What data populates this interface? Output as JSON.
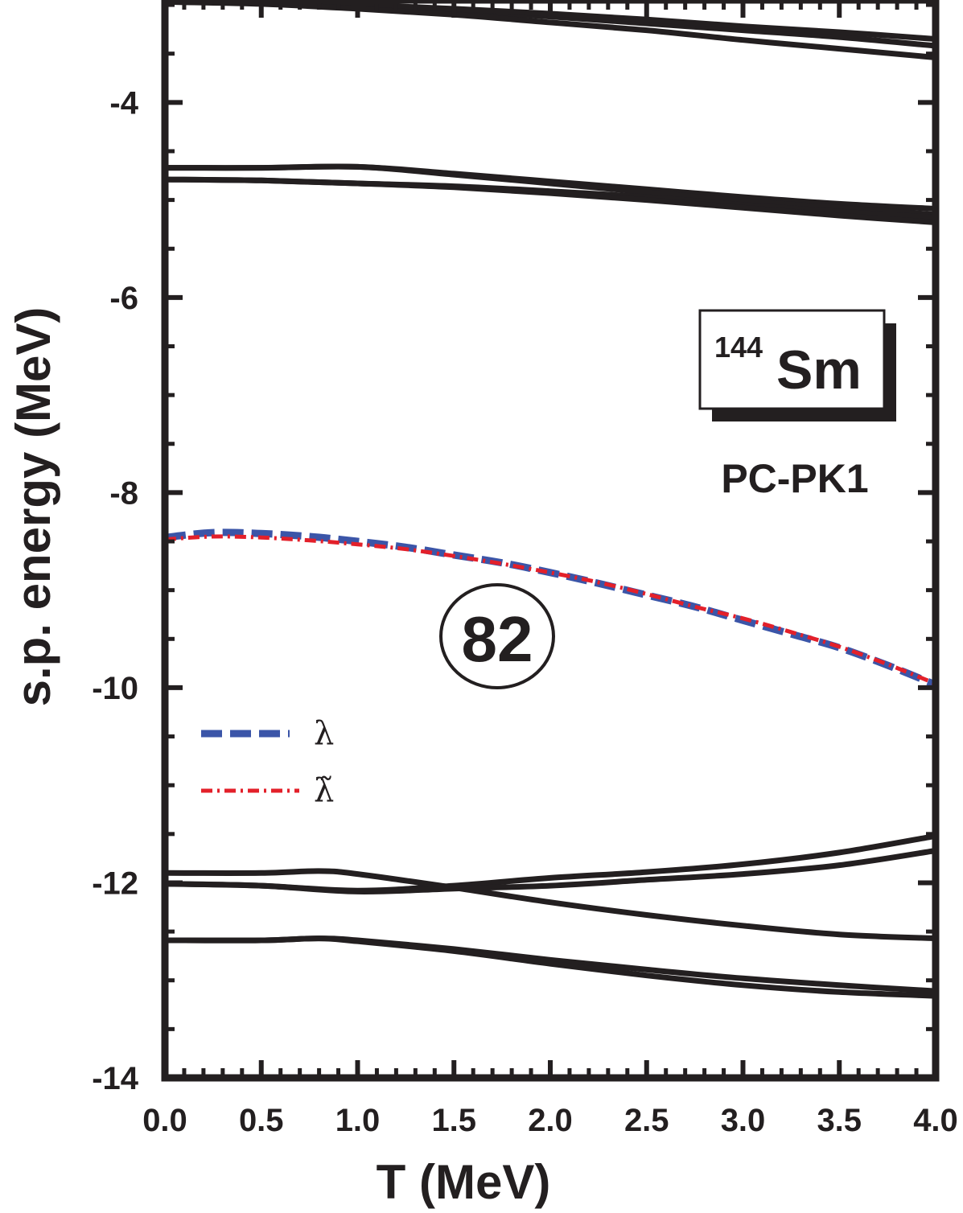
{
  "chart_data": {
    "type": "line",
    "xlabel": "T (MeV)",
    "ylabel": "s.p. energy (MeV)",
    "xlim": [
      0.0,
      4.0
    ],
    "ylim": [
      -14,
      -2.95
    ],
    "x_ticks": [
      "0.0",
      "0.5",
      "1.0",
      "1.5",
      "2.0",
      "2.5",
      "3.0",
      "3.5",
      "4.0"
    ],
    "y_ticks": [
      "-4",
      "-6",
      "-8",
      "-10",
      "-12",
      "-14"
    ],
    "annotations": {
      "nucleus_mass": "144",
      "nucleus_symbol": "Sm",
      "model": "PC-PK1",
      "shell_gap": "82"
    },
    "colors": {
      "lambda": "#3b55a8",
      "lambda_tilde": "#e3202a",
      "levels": "#231f20"
    },
    "series": [
      {
        "name": "λ",
        "style": "dashed",
        "color": "#3b55a8",
        "x": [
          0.0,
          0.25,
          0.5,
          0.75,
          1.0,
          1.25,
          1.5,
          1.75,
          2.0,
          2.25,
          2.5,
          2.75,
          3.0,
          3.25,
          3.5,
          3.75,
          4.0
        ],
        "values": [
          -8.46,
          -8.41,
          -8.42,
          -8.45,
          -8.5,
          -8.56,
          -8.64,
          -8.72,
          -8.82,
          -8.93,
          -9.05,
          -9.17,
          -9.31,
          -9.45,
          -9.59,
          -9.77,
          -9.97
        ]
      },
      {
        "name": "λ̃",
        "style": "dashdot",
        "color": "#e3202a",
        "x": [
          0.0,
          0.25,
          0.5,
          0.75,
          1.0,
          1.25,
          1.5,
          1.75,
          2.0,
          2.25,
          2.5,
          2.75,
          3.0,
          3.25,
          3.5,
          3.75,
          4.0
        ],
        "values": [
          -8.48,
          -8.45,
          -8.46,
          -8.49,
          -8.53,
          -8.58,
          -8.65,
          -8.73,
          -8.82,
          -8.92,
          -9.04,
          -9.17,
          -9.29,
          -9.43,
          -9.58,
          -9.76,
          -9.96
        ]
      },
      {
        "style": "solid",
        "color": "#231f20",
        "x": [
          0.0,
          0.5,
          1.0,
          1.5,
          2.0,
          2.5,
          3.0,
          3.5,
          4.0
        ],
        "values": [
          -2.97,
          -2.98,
          -3.02,
          -3.06,
          -3.12,
          -3.19,
          -3.26,
          -3.33,
          -3.42
        ]
      },
      {
        "style": "solid",
        "color": "#231f20",
        "x": [
          0.0,
          0.5,
          1.0,
          1.5,
          2.0,
          2.5,
          3.0,
          3.5,
          4.0
        ],
        "values": [
          -2.97,
          -2.98,
          -3.0,
          -3.04,
          -3.09,
          -3.15,
          -3.22,
          -3.28,
          -3.35
        ]
      },
      {
        "style": "solid",
        "color": "#231f20",
        "x": [
          0.0,
          0.5,
          1.0,
          1.5,
          2.0,
          2.5,
          3.0,
          3.5,
          4.0
        ],
        "values": [
          -2.97,
          -2.99,
          -3.04,
          -3.1,
          -3.18,
          -3.26,
          -3.36,
          -3.45,
          -3.54
        ]
      },
      {
        "style": "solid",
        "color": "#231f20",
        "x": [
          0.0,
          0.5,
          1.0,
          1.5,
          2.0,
          2.5,
          3.0,
          3.5,
          4.0
        ],
        "values": [
          -4.67,
          -4.67,
          -4.66,
          -4.73,
          -4.81,
          -4.89,
          -4.97,
          -5.04,
          -5.09
        ]
      },
      {
        "style": "solid",
        "color": "#231f20",
        "x": [
          0.0,
          0.5,
          1.0,
          1.5,
          2.0,
          2.5,
          3.0,
          3.5,
          4.0
        ],
        "values": [
          -4.67,
          -4.67,
          -4.66,
          -4.74,
          -4.83,
          -4.92,
          -5.01,
          -5.08,
          -5.15
        ]
      },
      {
        "style": "solid",
        "color": "#231f20",
        "x": [
          0.0,
          0.5,
          1.0,
          1.5,
          2.0,
          2.5,
          3.0,
          3.5,
          4.0
        ],
        "values": [
          -4.79,
          -4.8,
          -4.83,
          -4.86,
          -4.91,
          -4.97,
          -5.05,
          -5.12,
          -5.18
        ]
      },
      {
        "style": "solid",
        "color": "#231f20",
        "x": [
          0.0,
          0.5,
          1.0,
          1.5,
          2.0,
          2.5,
          3.0,
          3.5,
          4.0
        ],
        "values": [
          -4.79,
          -4.8,
          -4.83,
          -4.87,
          -4.93,
          -5.0,
          -5.08,
          -5.16,
          -5.23
        ]
      },
      {
        "style": "solid",
        "color": "#231f20",
        "x": [
          0.0,
          0.5,
          0.8,
          1.0,
          1.5,
          2.0,
          2.5,
          3.0,
          3.5,
          4.0
        ],
        "values": [
          -11.9,
          -11.9,
          -11.88,
          -11.91,
          -12.05,
          -12.2,
          -12.33,
          -12.44,
          -12.53,
          -12.57
        ]
      },
      {
        "style": "solid",
        "color": "#231f20",
        "x": [
          0.0,
          0.5,
          1.0,
          1.5,
          2.0,
          2.5,
          3.0,
          3.5,
          4.0
        ],
        "values": [
          -12.01,
          -12.03,
          -12.08,
          -12.03,
          -11.95,
          -11.89,
          -11.81,
          -11.69,
          -11.52
        ]
      },
      {
        "style": "solid",
        "color": "#231f20",
        "x": [
          0.0,
          0.5,
          1.0,
          1.5,
          2.0,
          2.5,
          3.0,
          3.5,
          4.0
        ],
        "values": [
          -12.01,
          -12.03,
          -12.09,
          -12.06,
          -12.03,
          -11.97,
          -11.91,
          -11.82,
          -11.67
        ]
      },
      {
        "style": "solid",
        "color": "#231f20",
        "x": [
          0.0,
          0.5,
          0.8,
          1.0,
          1.5,
          2.0,
          2.5,
          3.0,
          3.5,
          4.0
        ],
        "values": [
          -12.59,
          -12.59,
          -12.57,
          -12.59,
          -12.68,
          -12.79,
          -12.89,
          -12.98,
          -13.05,
          -13.11
        ]
      },
      {
        "style": "solid",
        "color": "#231f20",
        "x": [
          0.0,
          0.5,
          0.8,
          1.0,
          1.5,
          2.0,
          2.5,
          3.0,
          3.5,
          4.0
        ],
        "values": [
          -12.59,
          -12.59,
          -12.57,
          -12.6,
          -12.7,
          -12.83,
          -12.95,
          -13.05,
          -13.12,
          -13.16
        ]
      }
    ]
  }
}
